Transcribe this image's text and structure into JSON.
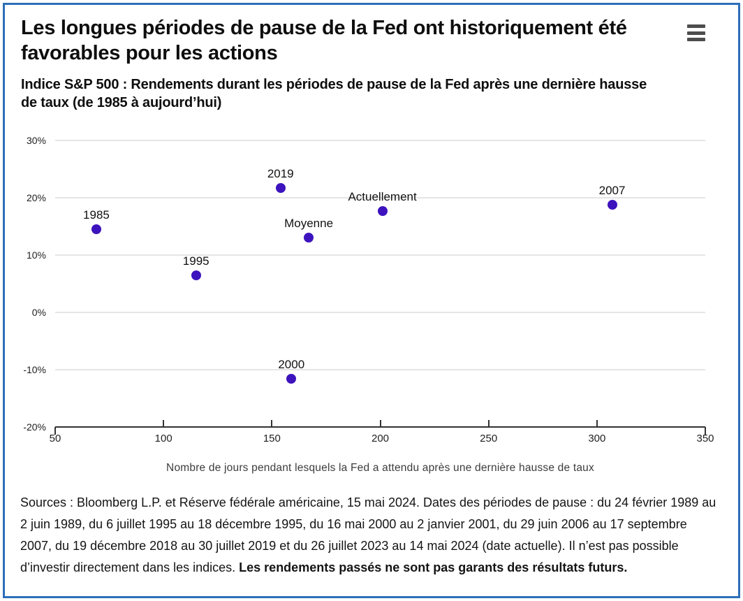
{
  "window": {
    "border_color": "#2e6fb9",
    "background_color": "#ffffff"
  },
  "menu": {
    "icon": "hamburger-menu-icon"
  },
  "chart_data": {
    "type": "scatter",
    "title": "Les longues périodes de pause de la Fed ont historiquement été favorables pour les actions",
    "subtitle": "Indice S&P 500 : Rendements durant les périodes de pause de la Fed après une dernière hausse de taux (de 1985 à aujourd’hui)",
    "xlabel": "Nombre de jours pendant lesquels la Fed a attendu après une dernière hausse de taux",
    "ylabel": "",
    "xlim": [
      50,
      350
    ],
    "ylim": [
      -20,
      30
    ],
    "x_ticks": [
      50,
      100,
      150,
      200,
      250,
      300,
      350
    ],
    "y_ticks": [
      30,
      20,
      10,
      0,
      -10,
      -20
    ],
    "y_tick_suffix": "%",
    "grid": "horizontal-only",
    "legend": "none",
    "point_color": "#3d13bd",
    "points": [
      {
        "label": "1985",
        "x": 69,
        "y": 14.5
      },
      {
        "label": "1995",
        "x": 115,
        "y": 6.5
      },
      {
        "label": "2019",
        "x": 154,
        "y": 21.7
      },
      {
        "label": "2000",
        "x": 159,
        "y": -11.6
      },
      {
        "label": "Moyenne",
        "x": 167,
        "y": 13.1
      },
      {
        "label": "Actuellement",
        "x": 201,
        "y": 17.7
      },
      {
        "label": "2007",
        "x": 307,
        "y": 18.8
      }
    ]
  },
  "footer": {
    "sources_text": "Sources : Bloomberg L.P. et Réserve fédérale américaine, 15 mai 2024. Dates des périodes de pause : du 24 février 1989 au 2 juin 1989, du 6 juillet 1995 au 18 décembre 1995, du 16 mai 2000 au 2 janvier 2001, du 29 juin 2006 au 17 septembre 2007, du 19 décembre 2018 au 30 juillet 2019 et du 26 juillet 2023 au 14 mai 2024 (date actuelle). Il n’est pas possible d’investir directement dans les indices. ",
    "disclaimer_bold": "Les rendements passés ne sont pas garants des résultats futurs."
  }
}
